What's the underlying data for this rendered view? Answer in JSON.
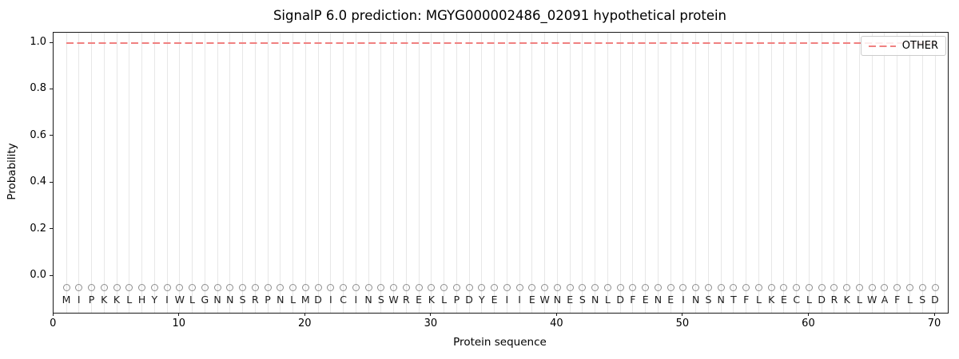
{
  "chart_data": {
    "type": "line",
    "title": "SignalP 6.0 prediction: MGYG000002486_02091 hypothetical protein",
    "xlabel": "Protein sequence",
    "ylabel": "Probability",
    "xticks": [
      0,
      10,
      20,
      30,
      40,
      50,
      60,
      70
    ],
    "yticks": [
      "0.0",
      "0.2",
      "0.4",
      "0.6",
      "0.8",
      "1.0"
    ],
    "xlim": [
      0,
      71
    ],
    "ylim": [
      -0.16,
      1.05
    ],
    "grid": "vertical-line-per-residue",
    "grid_color": "#e7e7e7",
    "legend_position": "upper right",
    "legend": [
      {
        "label": "OTHER",
        "color": "#f08080",
        "style": "dashed"
      }
    ],
    "sequence": "MIPKKLHYIWLGNNSRPNLMDICINSWREKLPDYEIIEWNESNLDFENEINSNTFLKECLDRKLWAFLSD",
    "sequence_positions": "1-70",
    "series": [
      {
        "name": "OTHER",
        "color": "#f08080",
        "style": "dashed",
        "x_start": 1,
        "x_end": 70,
        "values": [
          1.0,
          1.0,
          1.0,
          1.0,
          1.0,
          1.0,
          1.0,
          1.0,
          1.0,
          1.0,
          1.0,
          1.0,
          1.0,
          1.0,
          1.0,
          1.0,
          1.0,
          1.0,
          1.0,
          1.0,
          1.0,
          1.0,
          1.0,
          1.0,
          1.0,
          1.0,
          1.0,
          1.0,
          1.0,
          1.0,
          1.0,
          1.0,
          1.0,
          1.0,
          1.0,
          1.0,
          1.0,
          1.0,
          1.0,
          1.0,
          1.0,
          1.0,
          1.0,
          1.0,
          1.0,
          1.0,
          1.0,
          1.0,
          1.0,
          1.0,
          1.0,
          1.0,
          1.0,
          1.0,
          1.0,
          1.0,
          1.0,
          1.0,
          1.0,
          1.0,
          1.0,
          1.0,
          1.0,
          1.0,
          1.0,
          1.0,
          1.0,
          1.0,
          1.0,
          1.0
        ]
      }
    ],
    "residue_markers": {
      "shape": "open-circle",
      "y": -0.05,
      "color": "#8f8f8f"
    }
  }
}
